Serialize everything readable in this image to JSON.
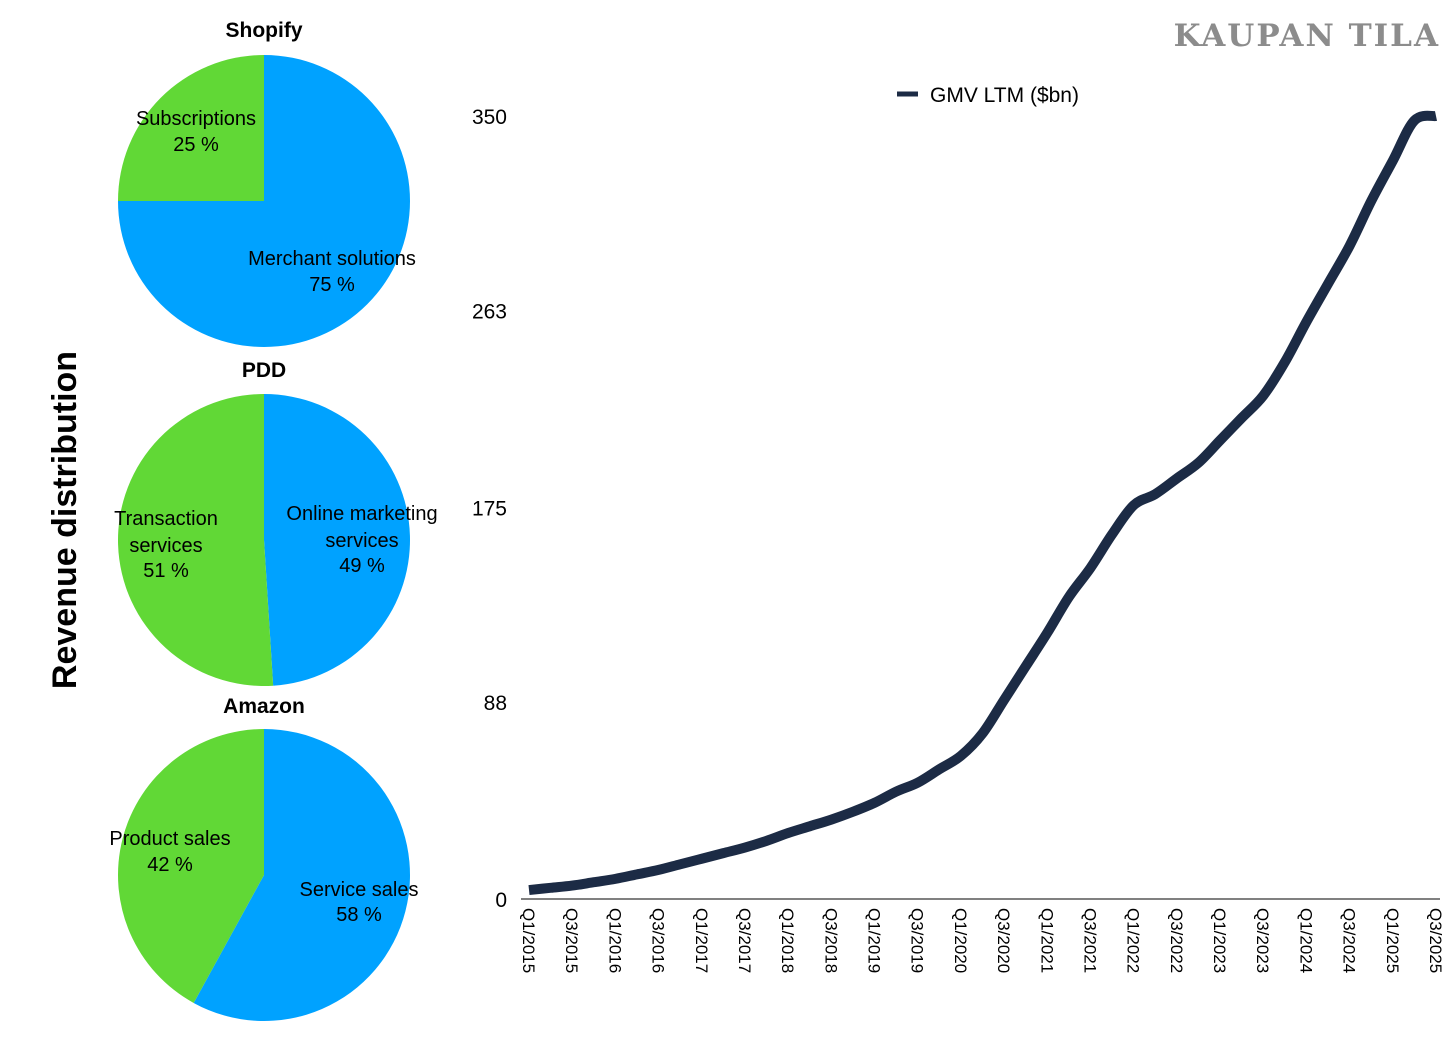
{
  "watermark": "KAUPAN TILA",
  "ylabel": "Revenue distribution",
  "colors": {
    "blue": "#00A2FF",
    "green": "#61D836",
    "line": "#1C2B45"
  },
  "chart_data": [
    {
      "type": "pie",
      "title": "Shopify",
      "slices": [
        {
          "label": "Merchant solutions",
          "value": 75,
          "value_label": "75 %",
          "color": "#00A2FF"
        },
        {
          "label": "Subscriptions",
          "value": 25,
          "value_label": "25 %",
          "color": "#61D836"
        }
      ]
    },
    {
      "type": "pie",
      "title": "PDD",
      "slices": [
        {
          "label": "Online marketing services",
          "value": 49,
          "value_label": "49 %",
          "color": "#00A2FF"
        },
        {
          "label": "Transaction services",
          "value": 51,
          "value_label": "51 %",
          "color": "#61D836"
        }
      ]
    },
    {
      "type": "pie",
      "title": "Amazon",
      "slices": [
        {
          "label": "Service sales",
          "value": 58,
          "value_label": "58 %",
          "color": "#00A2FF"
        },
        {
          "label": "Product sales",
          "value": 42,
          "value_label": "42 %",
          "color": "#61D836"
        }
      ]
    },
    {
      "type": "line",
      "legend": "top",
      "grid": false,
      "ylim": [
        0,
        350
      ],
      "yticks": [
        "0",
        "88",
        "175",
        "263",
        "350"
      ],
      "xtick_labels": [
        "Q1/2015",
        "Q3/2015",
        "Q1/2016",
        "Q3/2016",
        "Q1/2017",
        "Q3/2017",
        "Q1/2018",
        "Q3/2018",
        "Q1/2019",
        "Q3/2019",
        "Q1/2020",
        "Q3/2020",
        "Q1/2021",
        "Q3/2021",
        "Q1/2022",
        "Q3/2022",
        "Q1/2023",
        "Q3/2023",
        "Q1/2024",
        "Q3/2024",
        "Q1/2025",
        "Q3/2025"
      ],
      "series": [
        {
          "name": "GMV LTM ($bn)",
          "color": "#1C2B45",
          "x": [
            "Q1/2015",
            "Q2/2015",
            "Q3/2015",
            "Q4/2015",
            "Q1/2016",
            "Q2/2016",
            "Q3/2016",
            "Q4/2016",
            "Q1/2017",
            "Q2/2017",
            "Q3/2017",
            "Q4/2017",
            "Q1/2018",
            "Q2/2018",
            "Q3/2018",
            "Q4/2018",
            "Q1/2019",
            "Q2/2019",
            "Q3/2019",
            "Q4/2019",
            "Q1/2020",
            "Q2/2020",
            "Q3/2020",
            "Q4/2020",
            "Q1/2021",
            "Q2/2021",
            "Q3/2021",
            "Q4/2021",
            "Q1/2022",
            "Q2/2022",
            "Q3/2022",
            "Q4/2022",
            "Q1/2023",
            "Q2/2023",
            "Q3/2023",
            "Q4/2023",
            "Q1/2024",
            "Q2/2024",
            "Q3/2024",
            "Q4/2024",
            "Q1/2025",
            "Q2/2025",
            "Q3/2025"
          ],
          "values": [
            4,
            5,
            6,
            7.5,
            9,
            11,
            13,
            15.5,
            18,
            20.5,
            23,
            26,
            29.5,
            32.5,
            35.5,
            39,
            43,
            48,
            52,
            58,
            64,
            74,
            89,
            104,
            119,
            135,
            148,
            163,
            176,
            181,
            188,
            195,
            205,
            215,
            225,
            240,
            258,
            275,
            292,
            312,
            330,
            348,
            350
          ]
        }
      ]
    }
  ]
}
